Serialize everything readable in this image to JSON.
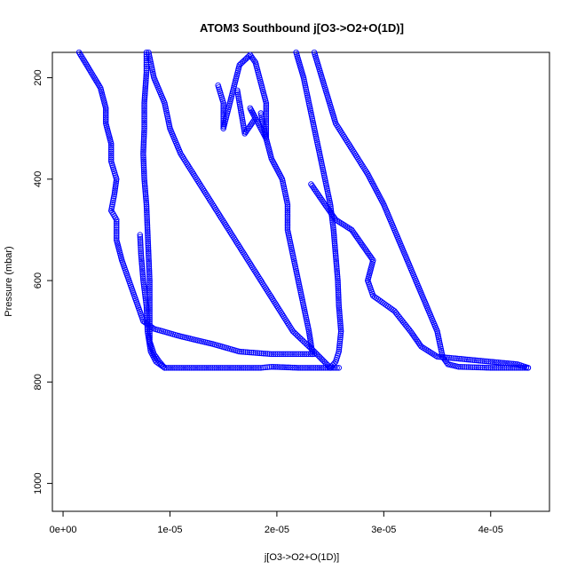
{
  "chart_data": {
    "type": "scatter",
    "title": "ATOM3 Southbound j[O3->O2+O(1D)]",
    "xlabel": "j[O3->O2+O(1D)]",
    "ylabel": "Pressure (mbar)",
    "xlim": [
      -1e-06,
      4.55e-05
    ],
    "ylim": [
      1055,
      150
    ],
    "y_reversed": true,
    "grid": false,
    "point_color": "#0000ff",
    "x_ticks": [
      {
        "value": 0,
        "label": "0e+00"
      },
      {
        "value": 1e-05,
        "label": "1e-05"
      },
      {
        "value": 2e-05,
        "label": "2e-05"
      },
      {
        "value": 3e-05,
        "label": "3e-05"
      },
      {
        "value": 4e-05,
        "label": "4e-05"
      }
    ],
    "y_ticks": [
      {
        "value": 200,
        "label": "200"
      },
      {
        "value": 400,
        "label": "400"
      },
      {
        "value": 600,
        "label": "600"
      },
      {
        "value": 800,
        "label": "800"
      },
      {
        "value": 1000,
        "label": "1000"
      }
    ],
    "series": [
      {
        "points": [
          [
            1.5e-06,
            150
          ],
          [
            2.5e-06,
            185
          ],
          [
            3.5e-06,
            220
          ],
          [
            4e-06,
            260
          ],
          [
            4e-06,
            290
          ],
          [
            4.5e-06,
            330
          ],
          [
            4.5e-06,
            365
          ],
          [
            5e-06,
            400
          ],
          [
            4.8e-06,
            430
          ],
          [
            4.5e-06,
            462
          ],
          [
            5e-06,
            480
          ],
          [
            5e-06,
            520
          ],
          [
            5.5e-06,
            560
          ],
          [
            6e-06,
            590
          ],
          [
            6.5e-06,
            620
          ],
          [
            7e-06,
            650
          ],
          [
            7.5e-06,
            680
          ],
          [
            8.5e-06,
            695
          ],
          [
            1.1e-05,
            710
          ],
          [
            1.4e-05,
            725
          ],
          [
            1.65e-05,
            740
          ],
          [
            1.95e-05,
            745
          ],
          [
            2.35e-05,
            745
          ]
        ]
      },
      {
        "points": [
          [
            7.8e-06,
            150
          ],
          [
            7.8e-06,
            190
          ],
          [
            7.6e-06,
            250
          ],
          [
            7.6e-06,
            300
          ],
          [
            7.5e-06,
            350
          ],
          [
            7.6e-06,
            400
          ],
          [
            7.8e-06,
            450
          ],
          [
            7.9e-06,
            500
          ],
          [
            8e-06,
            550
          ],
          [
            8.1e-06,
            600
          ],
          [
            8.1e-06,
            650
          ],
          [
            8.1e-06,
            700
          ],
          [
            8.1e-06,
            720
          ],
          [
            8.5e-06,
            745
          ],
          [
            9e-06,
            760
          ],
          [
            9.5e-06,
            772
          ]
        ]
      },
      {
        "points": [
          [
            8e-06,
            150
          ],
          [
            8.5e-06,
            200
          ],
          [
            9.5e-06,
            250
          ],
          [
            1e-05,
            300
          ],
          [
            1.1e-05,
            350
          ],
          [
            1.25e-05,
            400
          ],
          [
            1.4e-05,
            450
          ],
          [
            1.55e-05,
            500
          ],
          [
            1.7e-05,
            550
          ],
          [
            1.85e-05,
            600
          ],
          [
            2e-05,
            650
          ],
          [
            2.15e-05,
            700
          ],
          [
            2.35e-05,
            740
          ],
          [
            2.5e-05,
            772
          ]
        ]
      },
      {
        "points": [
          [
            7.2e-06,
            510
          ],
          [
            7.3e-06,
            550
          ],
          [
            7.5e-06,
            600
          ],
          [
            7.8e-06,
            650
          ],
          [
            7.9e-06,
            700
          ],
          [
            8.2e-06,
            740
          ],
          [
            8.7e-06,
            760
          ],
          [
            9.5e-06,
            772
          ],
          [
            1.2e-05,
            772
          ],
          [
            1.85e-05,
            772
          ],
          [
            1.95e-05,
            770
          ],
          [
            2.2e-05,
            772
          ],
          [
            2.58e-05,
            772
          ]
        ]
      },
      {
        "points": [
          [
            1.85e-05,
            270
          ],
          [
            1.9e-05,
            320
          ],
          [
            1.95e-05,
            360
          ],
          [
            2.05e-05,
            400
          ],
          [
            2.1e-05,
            450
          ],
          [
            2.1e-05,
            500
          ],
          [
            2.15e-05,
            550
          ],
          [
            2.2e-05,
            600
          ],
          [
            2.25e-05,
            650
          ],
          [
            2.3e-05,
            700
          ],
          [
            2.33e-05,
            740
          ],
          [
            2.33e-05,
            745
          ]
        ]
      },
      {
        "points": [
          [
            2.18e-05,
            150
          ],
          [
            2.25e-05,
            200
          ],
          [
            2.3e-05,
            250
          ],
          [
            2.35e-05,
            300
          ],
          [
            2.4e-05,
            350
          ],
          [
            2.45e-05,
            400
          ],
          [
            2.5e-05,
            450
          ],
          [
            2.53e-05,
            500
          ],
          [
            2.55e-05,
            550
          ],
          [
            2.57e-05,
            600
          ],
          [
            2.58e-05,
            650
          ],
          [
            2.6e-05,
            700
          ],
          [
            2.58e-05,
            740
          ],
          [
            2.55e-05,
            760
          ],
          [
            2.5e-05,
            772
          ]
        ]
      },
      {
        "points": [
          [
            2.35e-05,
            150
          ],
          [
            2.45e-05,
            220
          ],
          [
            2.55e-05,
            290
          ],
          [
            2.7e-05,
            340
          ],
          [
            2.85e-05,
            390
          ],
          [
            3e-05,
            450
          ],
          [
            3.1e-05,
            500
          ],
          [
            3.2e-05,
            550
          ],
          [
            3.3e-05,
            600
          ],
          [
            3.4e-05,
            650
          ],
          [
            3.5e-05,
            700
          ],
          [
            3.55e-05,
            750
          ],
          [
            3.6e-05,
            765
          ],
          [
            3.7e-05,
            770
          ],
          [
            4e-05,
            772
          ],
          [
            4.35e-05,
            772
          ]
        ]
      },
      {
        "points": [
          [
            2.32e-05,
            410
          ],
          [
            2.45e-05,
            450
          ],
          [
            2.55e-05,
            480
          ],
          [
            2.7e-05,
            500
          ],
          [
            2.8e-05,
            530
          ],
          [
            2.9e-05,
            560
          ],
          [
            2.85e-05,
            600
          ],
          [
            2.9e-05,
            630
          ],
          [
            3.1e-05,
            660
          ],
          [
            3.25e-05,
            700
          ],
          [
            3.35e-05,
            730
          ],
          [
            3.5e-05,
            750
          ],
          [
            4e-05,
            760
          ],
          [
            4.25e-05,
            765
          ],
          [
            4.35e-05,
            772
          ]
        ]
      },
      {
        "points": [
          [
            1.45e-05,
            215
          ],
          [
            1.5e-05,
            250
          ],
          [
            1.5e-05,
            300
          ],
          [
            1.65e-05,
            175
          ],
          [
            1.75e-05,
            155
          ],
          [
            1.8e-05,
            170
          ],
          [
            1.9e-05,
            250
          ],
          [
            1.9e-05,
            320
          ],
          [
            1.75e-05,
            260
          ],
          [
            1.8e-05,
            280
          ],
          [
            1.7e-05,
            310
          ],
          [
            1.63e-05,
            225
          ]
        ]
      }
    ]
  }
}
